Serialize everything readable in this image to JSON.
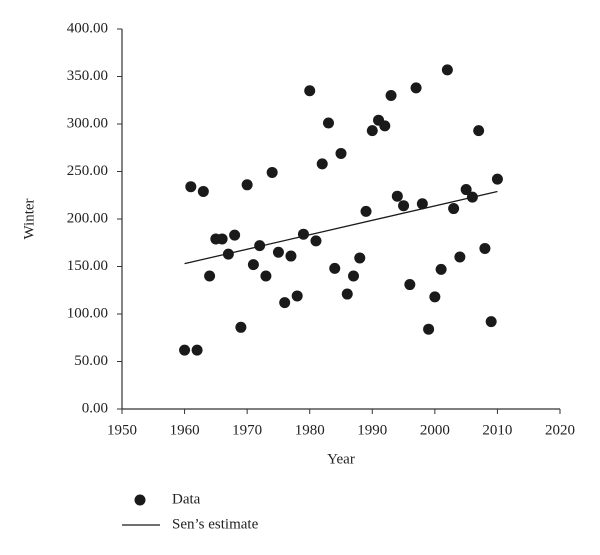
{
  "chart_data": {
    "type": "scatter",
    "xlabel": "Year",
    "ylabel": "Winter",
    "xlim": [
      1950,
      2020
    ],
    "ylim": [
      0,
      400
    ],
    "xticks": [
      1950,
      1960,
      1970,
      1980,
      1990,
      2000,
      2010,
      2020
    ],
    "yticks": [
      {
        "value": 0,
        "label": "0.00"
      },
      {
        "value": 50,
        "label": "50.00"
      },
      {
        "value": 100,
        "label": "100.00"
      },
      {
        "value": 150,
        "label": "150.00"
      },
      {
        "value": 200,
        "label": "200.00"
      },
      {
        "value": 250,
        "label": "250.00"
      },
      {
        "value": 300,
        "label": "300.00"
      },
      {
        "value": 350,
        "label": "350.00"
      },
      {
        "value": 400,
        "label": "400.00"
      }
    ],
    "series": [
      {
        "name": "Data",
        "type": "scatter",
        "color": "#1a1a1a",
        "x": [
          1960,
          1961,
          1962,
          1963,
          1964,
          1965,
          1966,
          1967,
          1968,
          1969,
          1970,
          1971,
          1972,
          1973,
          1974,
          1975,
          1976,
          1977,
          1978,
          1979,
          1980,
          1981,
          1982,
          1983,
          1984,
          1985,
          1986,
          1987,
          1988,
          1989,
          1990,
          1991,
          1992,
          1993,
          1994,
          1995,
          1996,
          1997,
          1998,
          1999,
          2000,
          2001,
          2002,
          2003,
          2004,
          2005,
          2006,
          2007,
          2008,
          2009,
          2010
        ],
        "values": [
          62,
          234,
          62,
          229,
          140,
          179,
          179,
          163,
          183,
          86,
          236,
          152,
          172,
          140,
          249,
          165,
          112,
          161,
          119,
          184,
          335,
          177,
          258,
          301,
          148,
          269,
          121,
          140,
          159,
          208,
          293,
          304,
          298,
          330,
          224,
          214,
          131,
          338,
          216,
          84,
          118,
          147,
          357,
          211,
          160,
          231,
          223,
          293,
          169,
          92,
          242
        ]
      },
      {
        "name": "Sen’s estimate",
        "type": "line",
        "color": "#1a1a1a",
        "x": [
          1960,
          2010
        ],
        "values": [
          153,
          229
        ]
      }
    ]
  }
}
